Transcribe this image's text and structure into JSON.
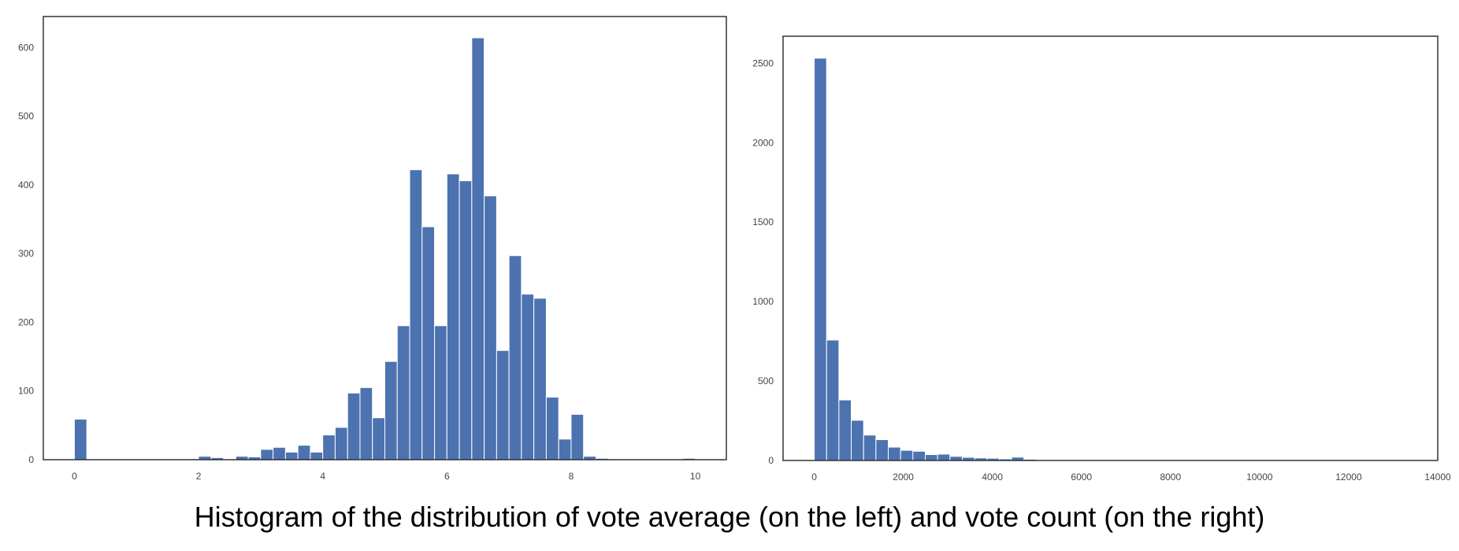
{
  "caption": "Histogram of the distribution of vote average (on the left) and vote count (on the right)",
  "colors": {
    "bar": "#4c72b0",
    "axis": "#333333",
    "tick_text": "#444444"
  },
  "chart_data": [
    {
      "type": "bar",
      "title": "",
      "xlabel": "",
      "ylabel": "",
      "bin_width": 0.2,
      "xlim": [
        -0.5,
        10.5
      ],
      "ylim": [
        0,
        645
      ],
      "xticks": [
        "0",
        "2",
        "4",
        "6",
        "8",
        "10"
      ],
      "yticks": [
        "0",
        "100",
        "200",
        "300",
        "400",
        "500",
        "600"
      ],
      "grid": false,
      "bins": [
        {
          "x": 0.0,
          "y": 59
        },
        {
          "x": 2.0,
          "y": 5
        },
        {
          "x": 2.2,
          "y": 3
        },
        {
          "x": 2.6,
          "y": 5
        },
        {
          "x": 2.8,
          "y": 4
        },
        {
          "x": 3.0,
          "y": 15
        },
        {
          "x": 3.2,
          "y": 18
        },
        {
          "x": 3.4,
          "y": 11
        },
        {
          "x": 3.6,
          "y": 21
        },
        {
          "x": 3.8,
          "y": 11
        },
        {
          "x": 4.0,
          "y": 36
        },
        {
          "x": 4.2,
          "y": 47
        },
        {
          "x": 4.4,
          "y": 97
        },
        {
          "x": 4.6,
          "y": 105
        },
        {
          "x": 4.8,
          "y": 61
        },
        {
          "x": 5.0,
          "y": 143
        },
        {
          "x": 5.2,
          "y": 195
        },
        {
          "x": 5.4,
          "y": 422
        },
        {
          "x": 5.6,
          "y": 339
        },
        {
          "x": 5.8,
          "y": 195
        },
        {
          "x": 6.0,
          "y": 416
        },
        {
          "x": 6.2,
          "y": 406
        },
        {
          "x": 6.4,
          "y": 614
        },
        {
          "x": 6.6,
          "y": 384
        },
        {
          "x": 6.8,
          "y": 159
        },
        {
          "x": 7.0,
          "y": 297
        },
        {
          "x": 7.2,
          "y": 241
        },
        {
          "x": 7.4,
          "y": 235
        },
        {
          "x": 7.6,
          "y": 91
        },
        {
          "x": 7.8,
          "y": 30
        },
        {
          "x": 8.0,
          "y": 66
        },
        {
          "x": 8.2,
          "y": 5
        },
        {
          "x": 8.4,
          "y": 2
        },
        {
          "x": 9.8,
          "y": 2
        }
      ]
    },
    {
      "type": "bar",
      "title": "",
      "xlabel": "",
      "ylabel": "",
      "bin_width": 277,
      "xlim": [
        -700,
        14000
      ],
      "ylim": [
        0,
        2670
      ],
      "xticks": [
        "0",
        "2000",
        "4000",
        "6000",
        "8000",
        "10000",
        "12000",
        "14000"
      ],
      "yticks": [
        "0",
        "500",
        "1000",
        "1500",
        "2000",
        "2500"
      ],
      "grid": false,
      "bins": [
        {
          "x": 0,
          "y": 2532
        },
        {
          "x": 277,
          "y": 758
        },
        {
          "x": 554,
          "y": 381
        },
        {
          "x": 831,
          "y": 253
        },
        {
          "x": 1108,
          "y": 160
        },
        {
          "x": 1385,
          "y": 131
        },
        {
          "x": 1662,
          "y": 84
        },
        {
          "x": 1939,
          "y": 64
        },
        {
          "x": 2216,
          "y": 58
        },
        {
          "x": 2493,
          "y": 37
        },
        {
          "x": 2770,
          "y": 40
        },
        {
          "x": 3047,
          "y": 26
        },
        {
          "x": 3324,
          "y": 20
        },
        {
          "x": 3601,
          "y": 16
        },
        {
          "x": 3878,
          "y": 14
        },
        {
          "x": 4155,
          "y": 10
        },
        {
          "x": 4432,
          "y": 21
        },
        {
          "x": 4709,
          "y": 8
        },
        {
          "x": 4986,
          "y": 2
        }
      ]
    }
  ]
}
